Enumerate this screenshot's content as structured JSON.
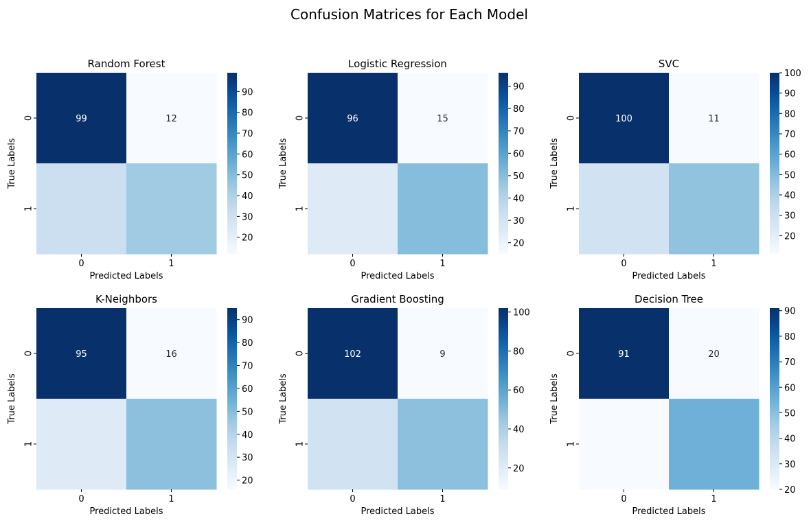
{
  "figure_title": "Confusion Matrices for Each Model",
  "chart_data": [
    {
      "type": "heatmap",
      "title": "Random Forest",
      "xlabel": "Predicted Labels",
      "ylabel": "True Labels",
      "x_ticks": [
        "0",
        "1"
      ],
      "y_ticks": [
        "0",
        "1"
      ],
      "matrix": [
        [
          99,
          12
        ],
        [
          31,
          44
        ]
      ],
      "annotations": [
        [
          "99",
          "12"
        ],
        [
          "",
          ""
        ]
      ],
      "colorbar": {
        "range": [
          12,
          99
        ],
        "ticks": [
          20,
          30,
          40,
          50,
          60,
          70,
          80,
          90
        ]
      },
      "colormap": "Blues"
    },
    {
      "type": "heatmap",
      "title": "Logistic Regression",
      "xlabel": "Predicted Labels",
      "ylabel": "True Labels",
      "x_ticks": [
        "0",
        "1"
      ],
      "y_ticks": [
        "0",
        "1"
      ],
      "matrix": [
        [
          96,
          15
        ],
        [
          25,
          50
        ]
      ],
      "annotations": [
        [
          "96",
          "15"
        ],
        [
          "",
          ""
        ]
      ],
      "colorbar": {
        "range": [
          15,
          96
        ],
        "ticks": [
          20,
          30,
          40,
          50,
          60,
          70,
          80,
          90
        ]
      },
      "colormap": "Blues"
    },
    {
      "type": "heatmap",
      "title": "SVC",
      "xlabel": "Predicted Labels",
      "ylabel": "True Labels",
      "x_ticks": [
        "0",
        "1"
      ],
      "y_ticks": [
        "0",
        "1"
      ],
      "matrix": [
        [
          100,
          11
        ],
        [
          28,
          47
        ]
      ],
      "annotations": [
        [
          "100",
          "11"
        ],
        [
          "",
          ""
        ]
      ],
      "colorbar": {
        "range": [
          11,
          100
        ],
        "ticks": [
          20,
          30,
          40,
          50,
          60,
          70,
          80,
          90,
          100
        ]
      },
      "colormap": "Blues"
    },
    {
      "type": "heatmap",
      "title": "K-Neighbors",
      "xlabel": "Predicted Labels",
      "ylabel": "True Labels",
      "x_ticks": [
        "0",
        "1"
      ],
      "y_ticks": [
        "0",
        "1"
      ],
      "matrix": [
        [
          95,
          16
        ],
        [
          26,
          49
        ]
      ],
      "annotations": [
        [
          "95",
          "16"
        ],
        [
          "",
          ""
        ]
      ],
      "colorbar": {
        "range": [
          16,
          95
        ],
        "ticks": [
          20,
          30,
          40,
          50,
          60,
          70,
          80,
          90
        ]
      },
      "colormap": "Blues"
    },
    {
      "type": "heatmap",
      "title": "Gradient Boosting",
      "xlabel": "Predicted Labels",
      "ylabel": "True Labels",
      "x_ticks": [
        "0",
        "1"
      ],
      "y_ticks": [
        "0",
        "1"
      ],
      "matrix": [
        [
          102,
          9
        ],
        [
          27,
          48
        ]
      ],
      "annotations": [
        [
          "102",
          "9"
        ],
        [
          "",
          ""
        ]
      ],
      "colorbar": {
        "range": [
          9,
          102
        ],
        "ticks": [
          20,
          40,
          60,
          80,
          100
        ]
      },
      "colormap": "Blues"
    },
    {
      "type": "heatmap",
      "title": "Decision Tree",
      "xlabel": "Predicted Labels",
      "ylabel": "True Labels",
      "x_ticks": [
        "0",
        "1"
      ],
      "y_ticks": [
        "0",
        "1"
      ],
      "matrix": [
        [
          91,
          20
        ],
        [
          20,
          55
        ]
      ],
      "annotations": [
        [
          "91",
          "20"
        ],
        [
          "",
          ""
        ]
      ],
      "colorbar": {
        "range": [
          20,
          91
        ],
        "ticks": [
          20,
          30,
          40,
          50,
          60,
          70,
          80,
          90
        ]
      },
      "colormap": "Blues"
    }
  ]
}
